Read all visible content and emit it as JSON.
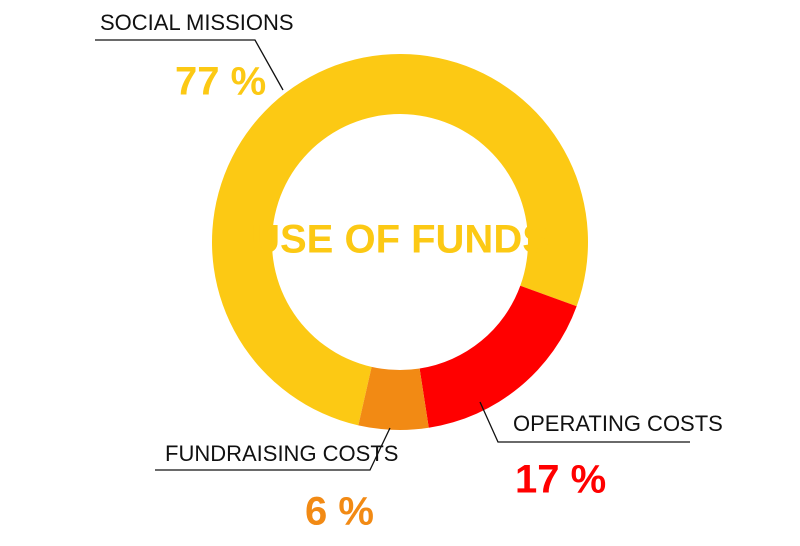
{
  "chart_data": {
    "type": "donut",
    "title": "USE OF FUNDS",
    "categories": [
      "SOCIAL MISSIONS",
      "OPERATING COSTS",
      "FUNDRAISING COSTS"
    ],
    "values": [
      77,
      17,
      6
    ],
    "value_labels": [
      "77 %",
      "17 %",
      "6 %"
    ],
    "colors": [
      "#fcc914",
      "#ff0000",
      "#f28a14"
    ]
  }
}
